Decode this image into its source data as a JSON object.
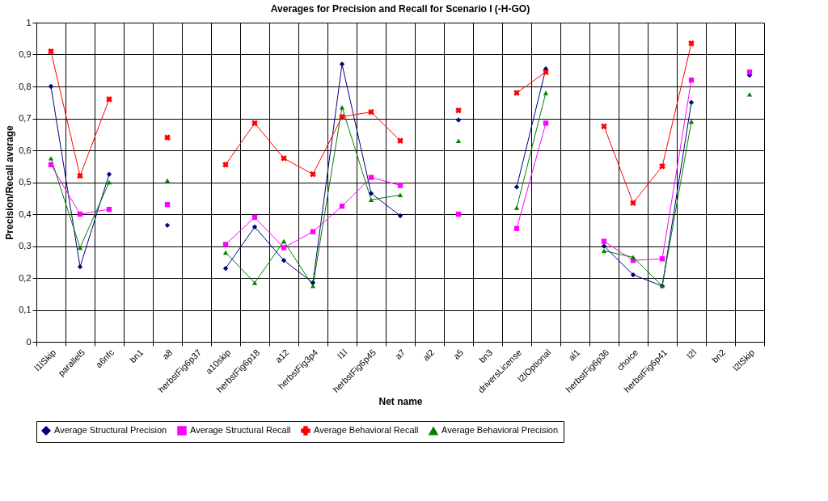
{
  "chart_data": {
    "type": "line",
    "title": "Averages for Precision and Recall for Scenario I (-H-GO)",
    "xlabel": "Net name",
    "ylabel": "Precision/Recall average",
    "categories": [
      "l1lSkip",
      "parallel5",
      "a6nfc",
      "bn1",
      "a8",
      "herbstFig6p37",
      "a10skip",
      "herbstFig6p18",
      "a12",
      "herbstFig3p4",
      "l1l",
      "herbstFig6p45",
      "a7",
      "al2",
      "a5",
      "bn3",
      "driversLicense",
      "l2lOptional",
      "al1",
      "herbstFig6p36",
      "choice",
      "herbstFig6p41",
      "l2l",
      "bn2",
      "l2lSkip"
    ],
    "series": [
      {
        "name": "Average Structural Precision",
        "color": "#000080",
        "marker": "diamond",
        "values": [
          0.8,
          0.235,
          0.525,
          null,
          0.365,
          null,
          0.23,
          0.36,
          0.255,
          0.185,
          0.87,
          0.465,
          0.395,
          null,
          0.695,
          null,
          0.485,
          0.855,
          null,
          0.3,
          0.21,
          0.175,
          0.75,
          null,
          0.835
        ]
      },
      {
        "name": "Average Structural Recall",
        "color": "#ff00ff",
        "marker": "square",
        "values": [
          0.555,
          0.4,
          0.415,
          null,
          0.43,
          null,
          0.305,
          0.39,
          0.295,
          0.345,
          0.425,
          0.515,
          0.49,
          null,
          0.4,
          null,
          0.355,
          0.685,
          null,
          0.315,
          0.255,
          0.26,
          0.82,
          null,
          0.845
        ]
      },
      {
        "name": "Average Behavioral Recall",
        "color": "#ff0000",
        "marker": "cross",
        "values": [
          0.91,
          0.52,
          0.76,
          null,
          0.64,
          null,
          0.555,
          0.685,
          0.575,
          0.525,
          0.705,
          0.72,
          0.63,
          null,
          0.725,
          null,
          0.78,
          0.845,
          null,
          0.675,
          0.435,
          0.55,
          0.935,
          null,
          null
        ]
      },
      {
        "name": "Average Behavioral Precision",
        "color": "#008000",
        "marker": "triangle",
        "values": [
          0.575,
          0.295,
          0.5,
          null,
          0.505,
          null,
          0.28,
          0.185,
          0.315,
          0.175,
          0.735,
          0.445,
          0.46,
          null,
          0.63,
          null,
          0.42,
          0.78,
          null,
          0.285,
          0.265,
          0.175,
          0.69,
          null,
          0.775
        ]
      }
    ],
    "ylim": [
      0,
      1
    ],
    "yticks": [
      0,
      {
        "value": 0.1,
        "label": "0,1"
      },
      {
        "value": 0.2,
        "label": "0,2"
      },
      {
        "value": 0.3,
        "label": "0,3"
      },
      {
        "value": 0.4,
        "label": "0,4"
      },
      {
        "value": 0.5,
        "label": "0,5"
      },
      {
        "value": 0.6,
        "label": "0,6"
      },
      {
        "value": 0.7,
        "label": "0,7"
      },
      {
        "value": 0.8,
        "label": "0,8"
      },
      {
        "value": 0.9,
        "label": "0,9"
      },
      1
    ],
    "grid": true,
    "legend": "bottom",
    "line_style": "solid"
  }
}
